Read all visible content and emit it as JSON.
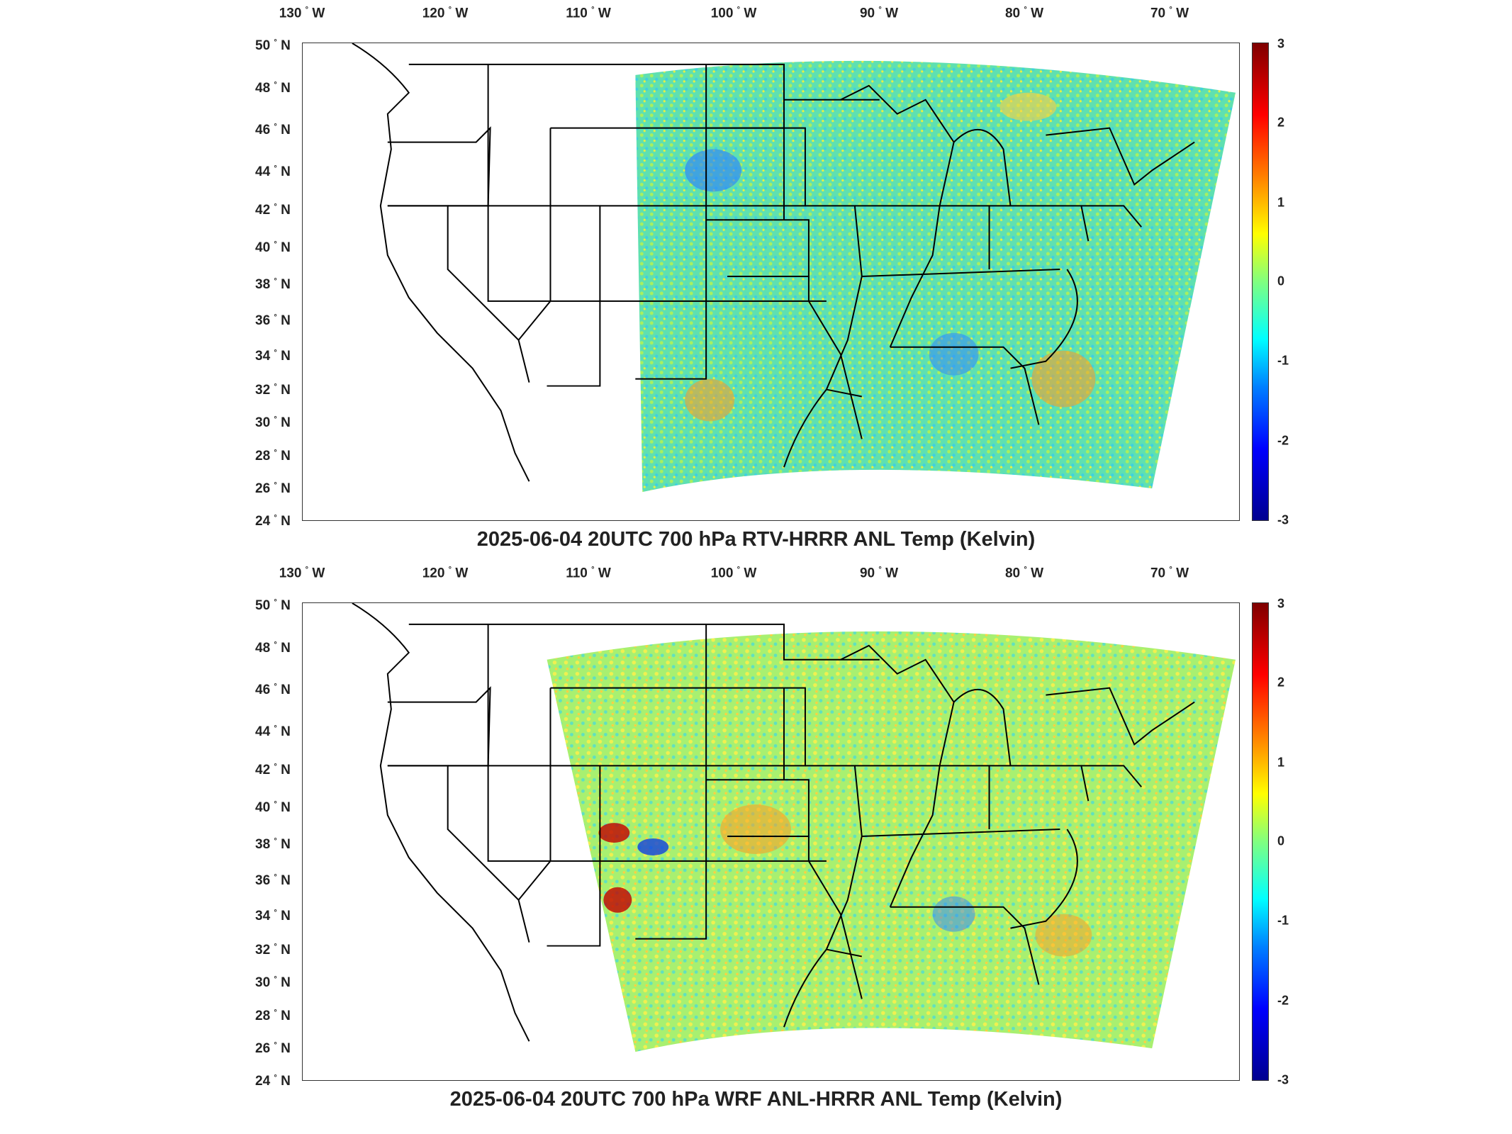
{
  "panels": [
    {
      "title": "2025-06-04 20UTC 700 hPa RTV-HRRR ANL Temp (Kelvin)",
      "colorbar_ticks": [
        "3",
        "2",
        "1",
        "0",
        "-1",
        "-2",
        "-3"
      ]
    },
    {
      "title": "2025-06-04 20UTC 700 hPa WRF ANL-HRRR ANL Temp (Kelvin)",
      "colorbar_ticks": [
        "3",
        "2",
        "1",
        "0",
        "-1",
        "-2",
        "-3"
      ]
    }
  ],
  "lon_labels": [
    "130",
    "120",
    "110",
    "100",
    "90",
    "80",
    "70"
  ],
  "lon_suffix": "W",
  "lat_labels": [
    "50",
    "48",
    "46",
    "44",
    "42",
    "40",
    "38",
    "36",
    "34",
    "32",
    "30",
    "28",
    "26",
    "24"
  ],
  "lat_suffix": "N",
  "degree_symbol": "°",
  "colormap": [
    "#00008f",
    "#0000ff",
    "#0080ff",
    "#00ffff",
    "#80ff80",
    "#ffff00",
    "#ff8000",
    "#ff0000",
    "#7f0000"
  ],
  "colorbar_range": [
    -3,
    3
  ]
}
